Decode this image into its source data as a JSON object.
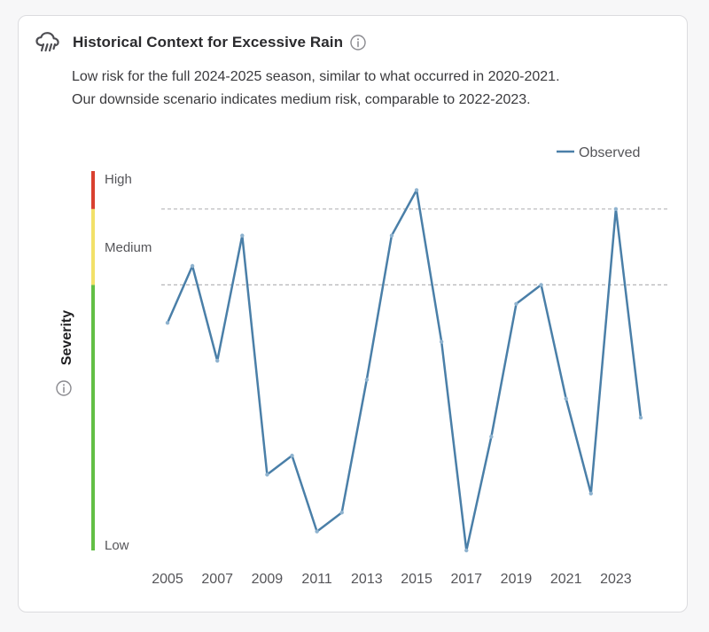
{
  "header": {
    "icon": "cloud-rain-icon",
    "title": "Historical Context for Excessive Rain",
    "info_icon": "info-icon"
  },
  "subtitle": {
    "line1": "Low risk for the full 2024-2025 season, similar to what occurred in 2020-2021.",
    "line2": "Our downside scenario indicates medium risk, comparable to 2022-2023."
  },
  "colors": {
    "line": "#4a7fa8",
    "high": "#d9402f",
    "medium": "#f2e169",
    "low": "#62bf45",
    "threshold": "#b5b5b8"
  },
  "chart_data": {
    "type": "line",
    "title": "Historical Context for Excessive Rain",
    "ylabel": "Severity",
    "xlabel": "",
    "severity_levels": [
      "Low",
      "Medium",
      "High"
    ],
    "severity_bands": [
      {
        "name": "Low",
        "from": 0,
        "to": 70,
        "color": "#62bf45"
      },
      {
        "name": "Medium",
        "from": 70,
        "to": 90,
        "color": "#f2e169"
      },
      {
        "name": "High",
        "from": 90,
        "to": 100,
        "color": "#d9402f"
      }
    ],
    "thresholds": [
      70,
      90
    ],
    "ylim": [
      0,
      100
    ],
    "xlim": [
      2005,
      2024
    ],
    "x_tick_labels": [
      "2005",
      "2007",
      "2009",
      "2011",
      "2013",
      "2015",
      "2017",
      "2019",
      "2021",
      "2023"
    ],
    "legend": "top-right",
    "series": [
      {
        "name": "Observed",
        "x": [
          2005,
          2006,
          2007,
          2008,
          2009,
          2010,
          2011,
          2012,
          2013,
          2014,
          2015,
          2016,
          2017,
          2018,
          2019,
          2020,
          2021,
          2022,
          2023,
          2024
        ],
        "values": [
          60,
          75,
          50,
          83,
          20,
          25,
          5,
          10,
          45,
          83,
          95,
          55,
          0,
          30,
          65,
          70,
          40,
          15,
          90,
          35
        ]
      }
    ]
  }
}
